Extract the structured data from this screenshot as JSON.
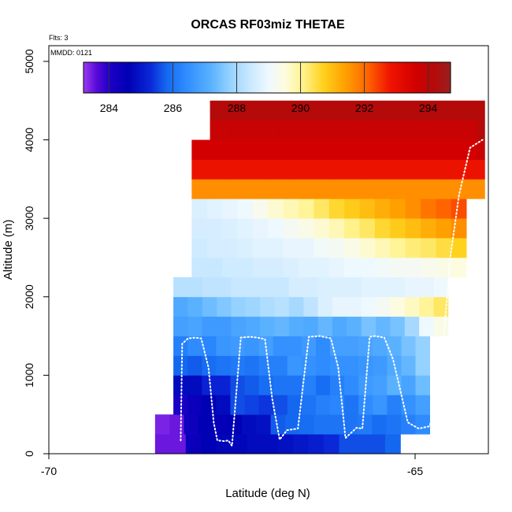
{
  "chart_data": {
    "type": "heatmap",
    "title": "ORCAS RF03miz THETAE",
    "xlabel": "Latitude (deg N)",
    "ylabel": "Altitude (m)",
    "xlim": [
      -70,
      -64
    ],
    "ylim": [
      0,
      5200
    ],
    "x_ticks": [
      {
        "value": -70,
        "label": "-70"
      },
      {
        "value": -65,
        "label": "-65"
      }
    ],
    "y_ticks": [
      {
        "value": 0,
        "label": "0"
      },
      {
        "value": 1000,
        "label": "1000"
      },
      {
        "value": 2000,
        "label": "2000"
      },
      {
        "value": 3000,
        "label": "3000"
      },
      {
        "value": 4000,
        "label": "4000"
      },
      {
        "value": 5000,
        "label": "5000"
      }
    ],
    "annotations": {
      "flights": "Flts: 3",
      "date": "MMDD: 0121"
    },
    "colorbar": {
      "range": [
        283.2,
        294.7
      ],
      "ticks": [
        {
          "value": 284,
          "label": "284"
        },
        {
          "value": 286,
          "label": "286"
        },
        {
          "value": 288,
          "label": "288"
        },
        {
          "value": 290,
          "label": "290"
        },
        {
          "value": 292,
          "label": "292"
        },
        {
          "value": 294,
          "label": "294"
        }
      ],
      "stops": [
        {
          "v": 283.2,
          "c": "#9a3cf0"
        },
        {
          "v": 283.6,
          "c": "#5a0ad8"
        },
        {
          "v": 284.0,
          "c": "#1e00c8"
        },
        {
          "v": 284.6,
          "c": "#0000b4"
        },
        {
          "v": 285.3,
          "c": "#0a28d8"
        },
        {
          "v": 285.8,
          "c": "#1468f0"
        },
        {
          "v": 286.4,
          "c": "#2e8cff"
        },
        {
          "v": 287.2,
          "c": "#5ab2ff"
        },
        {
          "v": 287.8,
          "c": "#96d2ff"
        },
        {
          "v": 288.4,
          "c": "#c8e8ff"
        },
        {
          "v": 289.0,
          "c": "#eef8ff"
        },
        {
          "v": 289.5,
          "c": "#fdfce0"
        },
        {
          "v": 290.1,
          "c": "#fff28a"
        },
        {
          "v": 290.7,
          "c": "#ffd21e"
        },
        {
          "v": 291.4,
          "c": "#ffa000"
        },
        {
          "v": 292.1,
          "c": "#ff6400"
        },
        {
          "v": 292.8,
          "c": "#f01400"
        },
        {
          "v": 293.6,
          "c": "#d20000"
        },
        {
          "v": 294.2,
          "c": "#b40a0a"
        },
        {
          "v": 294.7,
          "c": "#9a2020"
        }
      ]
    },
    "grid": {
      "lat_start": -68.55,
      "lat_step": 0.25,
      "alt_start": 0,
      "alt_step": 250,
      "rows": [
        {
          "row": 0,
          "c0": 0,
          "values": [
            283.5,
            283.5,
            284.4,
            284.6,
            284.7,
            284.7,
            284.8,
            284.8,
            284.9,
            285.0,
            285.1,
            285.3,
            285.6,
            285.6,
            285.6,
            285.8
          ]
        },
        {
          "row": 1,
          "c0": 0,
          "values": [
            283.4,
            283.5,
            284.3,
            284.6,
            284.5,
            284.6,
            284.8,
            284.9,
            285.7,
            285.8,
            285.9,
            286.0,
            286.0,
            286.0,
            286.1,
            285.9,
            286.0,
            286.2,
            286.4
          ]
        },
        {
          "row": 2,
          "c0": 1,
          "values": [
            284.1,
            284.4,
            284.6,
            284.8,
            285.6,
            285.5,
            285.4,
            285.6,
            285.8,
            286.0,
            286.2,
            286.3,
            286.0,
            286.4,
            286.6,
            286.2,
            286.5,
            286.8
          ]
        },
        {
          "row": 3,
          "c0": 1,
          "values": [
            284.8,
            284.8,
            285.2,
            285.2,
            285.6,
            285.7,
            285.9,
            286.0,
            286.0,
            286.2,
            285.9,
            286.2,
            286.4,
            286.7,
            286.8,
            287.2,
            286.9,
            287.4
          ]
        },
        {
          "row": 4,
          "c0": 1,
          "values": [
            285.8,
            285.7,
            285.9,
            286.0,
            286.1,
            286.0,
            286.2,
            286.2,
            286.6,
            286.5,
            286.4,
            286.5,
            286.5,
            286.6,
            286.7,
            287.0,
            287.3,
            287.8
          ]
        },
        {
          "row": 5,
          "c0": 1,
          "values": [
            286.2,
            286.4,
            286.3,
            286.6,
            286.7,
            286.6,
            286.8,
            286.5,
            286.5,
            286.7,
            286.4,
            286.8,
            286.8,
            286.9,
            287.0,
            287.2,
            287.5,
            287.8
          ]
        },
        {
          "row": 6,
          "c0": 1,
          "values": [
            286.8,
            286.9,
            286.7,
            286.7,
            286.9,
            287.0,
            287.2,
            287.3,
            287.1,
            287.0,
            287.3,
            287.0,
            287.2,
            287.5,
            287.3,
            287.5,
            288.0,
            289.0,
            289.4
          ]
        },
        {
          "row": 7,
          "c0": 1,
          "values": [
            287.0,
            287.2,
            287.4,
            287.6,
            287.8,
            287.9,
            288.1,
            288.2,
            288.0,
            288.3,
            288.7,
            288.9,
            288.9,
            289.0,
            289.2,
            289.5,
            289.7,
            290.0,
            290.3
          ]
        },
        {
          "row": 8,
          "c0": 1,
          "values": [
            288.2,
            288.2,
            288.3,
            288.3,
            288.4,
            288.4,
            288.4,
            288.4,
            288.6,
            288.6,
            288.7,
            288.7,
            288.7,
            288.8,
            288.8,
            288.8,
            288.9,
            288.9,
            289.0
          ]
        },
        {
          "row": 9,
          "c0": 2,
          "values": [
            288.4,
            288.4,
            288.5,
            288.5,
            288.6,
            288.6,
            288.7,
            288.8,
            288.8,
            288.9,
            289.0,
            289.0,
            289.1,
            289.2,
            289.2,
            289.3,
            289.4,
            289.5
          ]
        },
        {
          "row": 10,
          "c0": 2,
          "values": [
            288.5,
            288.6,
            288.6,
            288.7,
            288.8,
            288.8,
            288.9,
            288.9,
            289.1,
            289.2,
            289.4,
            289.6,
            289.8,
            290.0,
            290.2,
            290.3,
            290.5,
            290.7
          ]
        },
        {
          "row": 11,
          "c0": 2,
          "values": [
            288.6,
            288.6,
            288.7,
            288.8,
            288.9,
            289.0,
            289.2,
            289.4,
            289.6,
            289.8,
            290.1,
            290.3,
            290.6,
            290.8,
            291.0,
            291.2,
            291.4,
            291.6
          ]
        },
        {
          "row": 12,
          "c0": 2,
          "values": [
            288.7,
            288.8,
            288.9,
            289.0,
            289.3,
            289.6,
            289.8,
            290.0,
            290.3,
            290.6,
            290.8,
            291.0,
            291.2,
            291.4,
            291.6,
            291.9,
            292.1,
            292.3
          ]
        },
        {
          "row": 13,
          "c0": 2,
          "values": [
            291.6,
            291.6,
            291.6,
            291.6,
            291.6,
            291.6,
            291.6,
            291.6,
            291.6,
            291.6,
            291.6,
            291.6,
            291.6,
            291.6,
            291.6,
            291.6,
            291.6,
            291.6,
            291.6,
            291.6,
            291.6,
            291.6,
            291.6,
            291.6,
            291.6,
            291.6,
            291.6,
            291.6,
            291.6,
            291.6,
            291.6,
            291.6,
            291.6,
            291.6,
            291.6,
            291.6,
            291.6,
            291.6,
            291.6,
            291.6
          ]
        },
        {
          "row": 14,
          "c0": 2,
          "values": [
            292.9,
            292.9,
            292.9,
            292.9,
            292.9,
            292.9,
            292.9,
            292.9,
            292.9,
            292.9,
            292.9,
            292.9,
            292.9,
            292.9,
            292.9,
            292.9,
            292.9,
            292.9,
            292.9,
            292.9,
            292.9,
            292.9,
            292.9,
            292.9,
            292.9,
            292.9,
            292.9,
            292.9,
            292.9,
            292.9,
            292.9,
            292.9,
            292.9,
            292.9,
            292.9,
            292.9,
            292.9,
            292.9,
            292.9,
            292.9
          ]
        },
        {
          "row": 15,
          "c0": 2,
          "values": [
            293.6,
            293.6,
            293.6,
            293.6,
            293.6,
            293.6,
            293.6,
            293.6,
            293.6,
            293.6,
            293.6,
            293.6,
            293.6,
            293.6,
            293.6,
            293.6,
            293.6,
            293.6,
            293.6,
            293.6,
            293.6,
            293.6,
            293.6,
            293.6,
            293.6,
            293.6,
            293.6,
            293.6,
            293.6,
            293.6,
            293.6,
            293.6,
            293.6,
            293.6,
            293.6,
            293.6,
            293.6,
            293.6,
            293.6,
            293.8
          ]
        },
        {
          "row": 16,
          "c0": 3,
          "values": [
            293.8,
            293.8,
            293.8,
            293.8,
            293.8,
            293.8,
            293.8,
            293.8,
            293.8,
            293.8,
            293.8,
            293.8,
            293.8,
            293.8,
            293.8,
            293.8,
            293.8,
            293.8,
            293.8,
            293.8,
            293.8,
            293.8,
            293.8,
            293.8,
            293.8,
            293.8,
            293.8,
            293.8,
            293.8,
            293.8,
            293.8,
            293.8,
            293.8,
            293.8,
            293.8,
            293.8,
            293.8,
            293.8,
            293.8,
            294.2
          ]
        },
        {
          "row": 17,
          "c0": 3,
          "values": [
            294.2,
            294.2,
            294.2,
            294.2,
            294.2,
            294.2,
            294.2,
            294.2,
            294.2,
            294.2,
            294.2,
            294.2,
            294.2,
            294.2,
            294.2,
            294.2,
            294.2,
            294.2,
            294.2,
            294.2,
            294.2,
            294.2,
            294.2,
            294.2,
            294.2,
            294.2,
            294.2,
            294.2,
            294.2,
            294.2,
            294.2,
            294.2,
            294.2,
            294.2,
            294.2,
            294.2,
            294.2,
            294.2,
            294.2,
            294.2
          ]
        }
      ],
      "row_extents": [
        [
          -68.55,
          -65.2
        ],
        [
          -68.55,
          -64.8
        ],
        [
          -68.3,
          -64.8
        ],
        [
          -68.3,
          -64.8
        ],
        [
          -68.3,
          -64.8
        ],
        [
          -68.3,
          -64.8
        ],
        [
          -68.3,
          -64.55
        ],
        [
          -68.3,
          -64.55
        ],
        [
          -68.3,
          -64.55
        ],
        [
          -68.05,
          -64.3
        ],
        [
          -68.05,
          -64.3
        ],
        [
          -68.05,
          -64.3
        ],
        [
          -68.05,
          -64.3
        ],
        [
          -68.05,
          -64.05
        ],
        [
          -68.05,
          -64.05
        ],
        [
          -68.05,
          -64.05
        ],
        [
          -67.8,
          -64.05
        ],
        [
          -67.8,
          -64.05
        ]
      ]
    },
    "flight_track": {
      "lat": [
        -68.2,
        -68.18,
        -68.1,
        -68.0,
        -67.92,
        -67.82,
        -67.75,
        -67.7,
        -67.6,
        -67.55,
        -67.5,
        -67.38,
        -67.25,
        -67.15,
        -67.05,
        -66.95,
        -66.85,
        -66.75,
        -66.6,
        -66.45,
        -66.3,
        -66.15,
        -66.05,
        -65.95,
        -65.8,
        -65.72,
        -65.62,
        -65.55,
        -65.42,
        -65.3,
        -65.1,
        -64.95,
        -64.8,
        -64.65,
        -64.52,
        -64.4,
        -64.25,
        -64.08
      ],
      "alt": [
        170,
        1400,
        1470,
        1480,
        1470,
        1100,
        400,
        170,
        160,
        170,
        100,
        1480,
        1490,
        1480,
        1460,
        700,
        180,
        300,
        320,
        1490,
        1500,
        1470,
        1100,
        200,
        330,
        320,
        1490,
        1500,
        1480,
        1200,
        400,
        320,
        350,
        1000,
        2500,
        3300,
        3900,
        4000
      ]
    }
  }
}
